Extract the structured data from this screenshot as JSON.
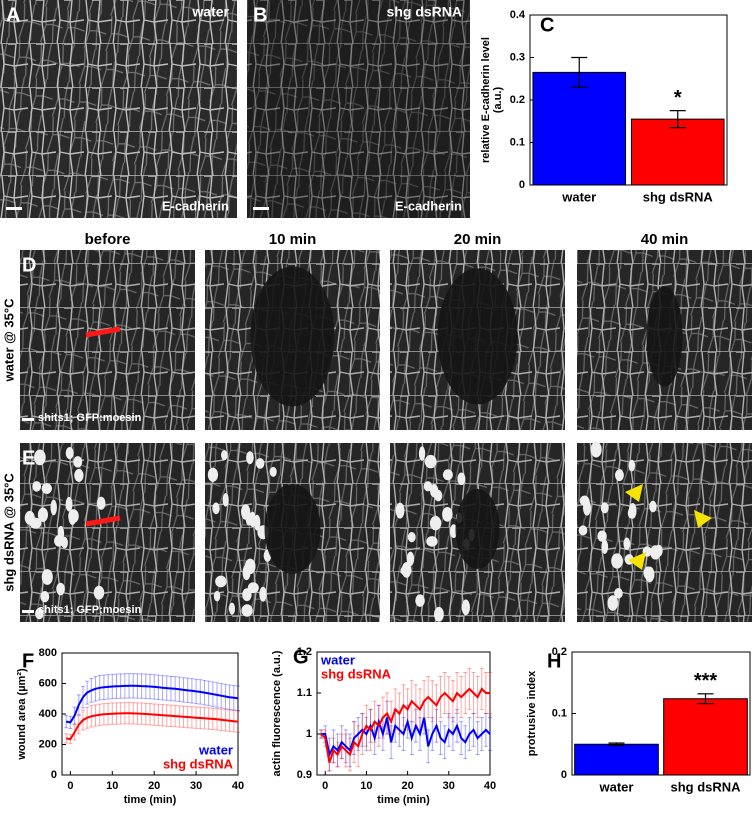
{
  "images": [
    {
      "label": "A",
      "caption": "water",
      "stain": "E-cadherin"
    },
    {
      "label": "B",
      "caption": "shg dsRNA",
      "stain": "E-cadherin"
    }
  ],
  "timelapse": {
    "columns": [
      "before",
      "10 min",
      "20 min",
      "40 min"
    ],
    "rows": [
      {
        "label": "D",
        "condition": "water @ 35°C",
        "marker": "shits1; GFP:moesin"
      },
      {
        "label": "E",
        "condition": "shg dsRNA @ 35°C",
        "marker": "shits1; GFP:moesin"
      }
    ]
  },
  "chart_data": [
    {
      "type": "bar",
      "label": "C",
      "ylabel": [
        "relative E-cadherin level",
        "(a.u.)"
      ],
      "categories": [
        "water",
        "shg dsRNA"
      ],
      "values": [
        0.265,
        0.155
      ],
      "errors": [
        0.035,
        0.02
      ],
      "colors": [
        "#0000ff",
        "#ff0000"
      ],
      "annotation": "*",
      "ylim": [
        0,
        0.4
      ],
      "yticks": [
        0,
        0.1,
        0.2,
        0.3,
        0.4
      ]
    },
    {
      "type": "line",
      "label": "F",
      "xlabel": "time (min)",
      "ylabel": "wound area (µm²)",
      "legend": "lower right",
      "x": [
        -1,
        0,
        1,
        2,
        3,
        4,
        5,
        6,
        7,
        8,
        9,
        10,
        11,
        12,
        13,
        14,
        15,
        16,
        17,
        18,
        19,
        20,
        21,
        22,
        23,
        24,
        25,
        26,
        27,
        28,
        29,
        30,
        31,
        32,
        33,
        34,
        35,
        36,
        37,
        38,
        39,
        40
      ],
      "series": [
        {
          "name": "water",
          "color": "#0000ff",
          "values": [
            350,
            345,
            390,
            460,
            510,
            540,
            555,
            565,
            572,
            575,
            578,
            580,
            582,
            583,
            584,
            585,
            585,
            584,
            583,
            582,
            580,
            578,
            575,
            572,
            570,
            567,
            565,
            562,
            558,
            555,
            552,
            548,
            545,
            540,
            535,
            530,
            525,
            520,
            515,
            510,
            507,
            503
          ],
          "errors": [
            40,
            40,
            55,
            65,
            70,
            75,
            78,
            80,
            80,
            80,
            80,
            80,
            80,
            80,
            80,
            80,
            80,
            80,
            80,
            80,
            80,
            80,
            80,
            80,
            80,
            80,
            80,
            80,
            80,
            80,
            80,
            80,
            80,
            80,
            80,
            80,
            80,
            80,
            80,
            80,
            80,
            80
          ]
        },
        {
          "name": "shg dsRNA",
          "color": "#ff0000",
          "values": [
            240,
            235,
            280,
            330,
            360,
            375,
            385,
            390,
            395,
            398,
            400,
            402,
            403,
            404,
            405,
            405,
            404,
            403,
            402,
            400,
            398,
            396,
            394,
            392,
            390,
            388,
            386,
            384,
            382,
            380,
            378,
            376,
            374,
            372,
            370,
            368,
            365,
            362,
            359,
            356,
            353,
            350
          ],
          "errors": [
            30,
            30,
            50,
            60,
            65,
            68,
            70,
            70,
            70,
            70,
            70,
            70,
            70,
            70,
            70,
            70,
            70,
            70,
            70,
            70,
            70,
            70,
            70,
            70,
            70,
            70,
            70,
            70,
            70,
            70,
            70,
            70,
            70,
            70,
            70,
            70,
            70,
            70,
            70,
            70,
            70,
            70
          ]
        }
      ],
      "xlim": [
        -2,
        40
      ],
      "xticks": [
        0,
        10,
        20,
        30,
        40
      ],
      "ylim": [
        0,
        800
      ],
      "yticks": [
        0,
        200,
        400,
        600,
        800
      ]
    },
    {
      "type": "line",
      "label": "G",
      "xlabel": "time (min)",
      "ylabel": "actin fluorescence (a.u.)",
      "legend": "upper left",
      "x": [
        -1,
        0,
        1,
        2,
        3,
        4,
        5,
        6,
        7,
        8,
        9,
        10,
        11,
        12,
        13,
        14,
        15,
        16,
        17,
        18,
        19,
        20,
        21,
        22,
        23,
        24,
        25,
        26,
        27,
        28,
        29,
        30,
        31,
        32,
        33,
        34,
        35,
        36,
        37,
        38,
        39,
        40
      ],
      "series": [
        {
          "name": "water",
          "color": "#0000ff",
          "values": [
            1.0,
            1.0,
            0.95,
            0.97,
            0.96,
            0.98,
            0.97,
            0.96,
            0.99,
            1.0,
            1.01,
            1.0,
            1.02,
            0.99,
            1.03,
            1.0,
            1.04,
            0.98,
            1.02,
            1.01,
            1.0,
            1.03,
            0.99,
            1.02,
            1.0,
            1.04,
            0.97,
            1.0,
            1.02,
            0.99,
            0.98,
            1.01,
            1.0,
            1.02,
            0.99,
            0.98,
            1.0,
            1.01,
            0.99,
            1.0,
            1.01,
            1.0
          ],
          "errors": [
            0.01,
            0.02,
            0.04,
            0.04,
            0.04,
            0.04,
            0.04,
            0.04,
            0.04,
            0.04,
            0.04,
            0.04,
            0.04,
            0.04,
            0.04,
            0.04,
            0.04,
            0.04,
            0.04,
            0.04,
            0.04,
            0.04,
            0.04,
            0.04,
            0.04,
            0.04,
            0.04,
            0.04,
            0.04,
            0.04,
            0.04,
            0.04,
            0.04,
            0.04,
            0.04,
            0.04,
            0.04,
            0.04,
            0.04,
            0.04,
            0.04,
            0.04
          ]
        },
        {
          "name": "shg dsRNA",
          "color": "#ff0000",
          "values": [
            1.0,
            0.99,
            0.93,
            0.96,
            0.95,
            0.97,
            0.96,
            0.95,
            0.98,
            0.97,
            1.0,
            1.02,
            1.01,
            1.03,
            1.02,
            1.04,
            1.05,
            1.03,
            1.06,
            1.05,
            1.07,
            1.06,
            1.08,
            1.07,
            1.06,
            1.08,
            1.09,
            1.08,
            1.07,
            1.09,
            1.1,
            1.09,
            1.08,
            1.1,
            1.09,
            1.1,
            1.11,
            1.1,
            1.09,
            1.11,
            1.1,
            1.1
          ],
          "errors": [
            0.01,
            0.02,
            0.02,
            0.03,
            0.03,
            0.03,
            0.04,
            0.04,
            0.05,
            0.05,
            0.05,
            0.05,
            0.05,
            0.05,
            0.05,
            0.05,
            0.05,
            0.05,
            0.05,
            0.05,
            0.05,
            0.05,
            0.05,
            0.05,
            0.05,
            0.05,
            0.05,
            0.05,
            0.05,
            0.05,
            0.05,
            0.05,
            0.05,
            0.05,
            0.05,
            0.05,
            0.05,
            0.05,
            0.05,
            0.05,
            0.05,
            0.05
          ]
        }
      ],
      "xlim": [
        -2,
        40
      ],
      "xticks": [
        0,
        10,
        20,
        30,
        40
      ],
      "ylim": [
        0.9,
        1.2
      ],
      "yticks": [
        0.9,
        1,
        1.1,
        1.2
      ]
    },
    {
      "type": "bar",
      "label": "H",
      "ylabel": "protrusive index",
      "categories": [
        "water",
        "shg dsRNA"
      ],
      "values": [
        0.05,
        0.124
      ],
      "errors": [
        0.002,
        0.008
      ],
      "colors": [
        "#0000ff",
        "#ff0000"
      ],
      "annotation": "***",
      "ylim": [
        0,
        0.2
      ],
      "yticks": [
        0,
        0.1,
        0.2
      ]
    }
  ]
}
